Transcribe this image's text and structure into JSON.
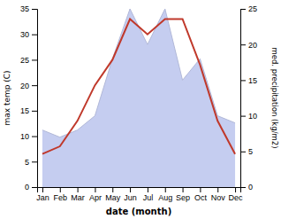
{
  "chart_data": {
    "type": "line",
    "categories": [
      "Jan",
      "Feb",
      "Mar",
      "Apr",
      "May",
      "Jun",
      "Jul",
      "Aug",
      "Sep",
      "Oct",
      "Nov",
      "Dec"
    ],
    "xlabel": "date (month)",
    "ylabel": "max temp (C)",
    "y2label": "med. precipitation (kg/m2)",
    "series": [
      {
        "type": "area",
        "axis": "y2",
        "color": "#c5cdf0",
        "values": [
          8.0,
          7.0,
          8.0,
          10.0,
          18.0,
          25.0,
          20.0,
          25.0,
          15.0,
          18.0,
          10.0,
          9.0
        ]
      },
      {
        "type": "line",
        "color": "#c0392b",
        "values": [
          6.5,
          8.0,
          13.0,
          20.0,
          25.0,
          33.0,
          30.0,
          33.0,
          33.0,
          24.0,
          13.0,
          6.5
        ]
      }
    ],
    "ylim": [
      0,
      35
    ],
    "yticks": [
      0,
      5,
      10,
      15,
      20,
      25,
      30,
      35
    ],
    "y2lim": [
      0,
      25
    ],
    "y2ticks": [
      0,
      5,
      10,
      15,
      20,
      25
    ],
    "grid": false
  }
}
